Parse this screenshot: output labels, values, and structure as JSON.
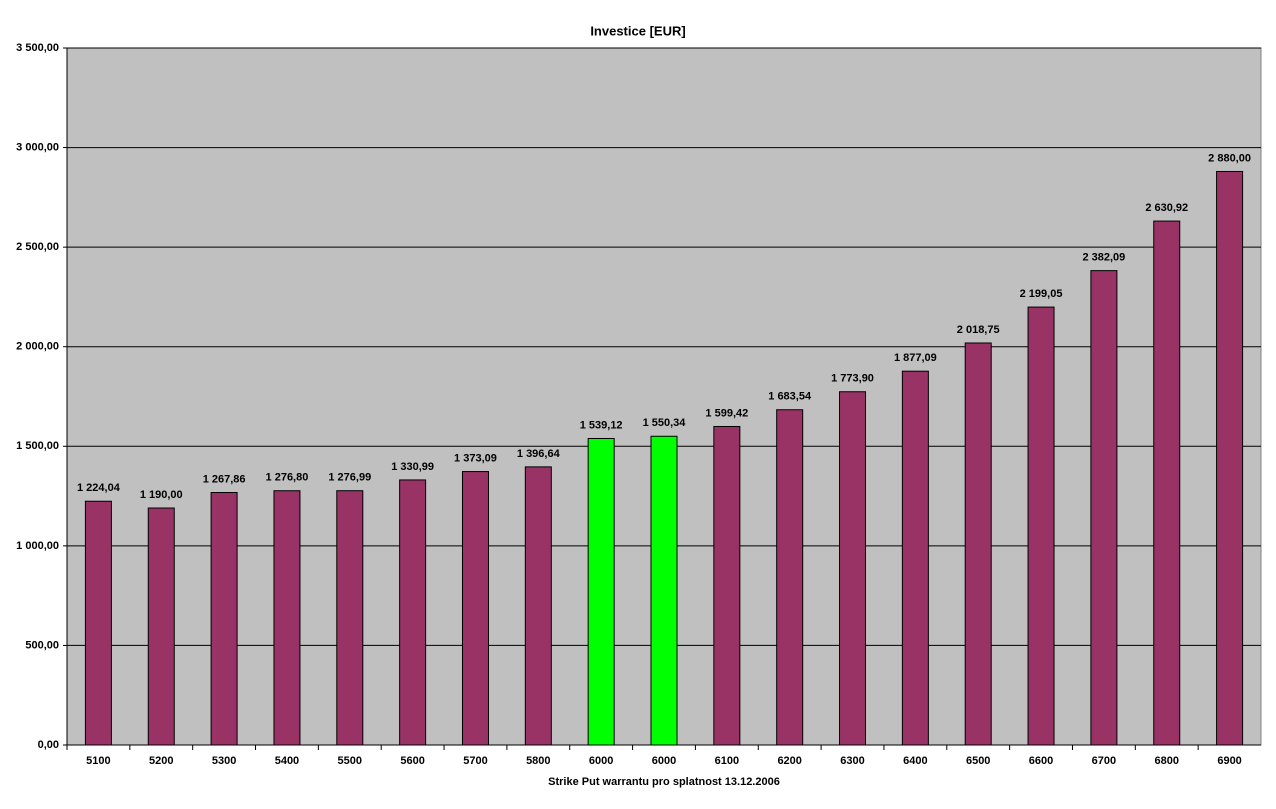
{
  "chart_data": {
    "type": "bar",
    "title": "Investice [EUR]",
    "xlabel": "Strike Put warrantu pro splatnost 13.12.2006",
    "categories": [
      "5100",
      "5200",
      "5300",
      "5400",
      "5500",
      "5600",
      "5700",
      "5800",
      "6000",
      "6000",
      "6100",
      "6200",
      "6300",
      "6400",
      "6500",
      "6600",
      "6700",
      "6800",
      "6900"
    ],
    "values": [
      1224.04,
      1190.0,
      1267.86,
      1276.8,
      1276.99,
      1330.99,
      1373.09,
      1396.64,
      1539.12,
      1550.34,
      1599.42,
      1683.54,
      1773.9,
      1877.09,
      2018.75,
      2199.05,
      2382.09,
      2630.92,
      2880.0
    ],
    "value_labels": [
      "1 224,04",
      "1 190,00",
      "1 267,86",
      "1 276,80",
      "1 276,99",
      "1 330,99",
      "1 373,09",
      "1 396,64",
      "1 539,12",
      "1 550,34",
      "1 599,42",
      "1 683,54",
      "1 773,90",
      "1 877,09",
      "2 018,75",
      "2 199,05",
      "2 382,09",
      "2 630,92",
      "2 880,00"
    ],
    "colors": [
      "#993366",
      "#993366",
      "#993366",
      "#993366",
      "#993366",
      "#993366",
      "#993366",
      "#993366",
      "#00ff00",
      "#00ff00",
      "#993366",
      "#993366",
      "#993366",
      "#993366",
      "#993366",
      "#993366",
      "#993366",
      "#993366",
      "#993366"
    ],
    "ylim": [
      0,
      3500
    ],
    "yticks": [
      {
        "value": 0,
        "label": "0,00"
      },
      {
        "value": 500,
        "label": "500,00"
      },
      {
        "value": 1000,
        "label": "1 000,00"
      },
      {
        "value": 1500,
        "label": "1 500,00"
      },
      {
        "value": 2000,
        "label": "2 000,00"
      },
      {
        "value": 2500,
        "label": "2 500,00"
      },
      {
        "value": 3000,
        "label": "3 000,00"
      },
      {
        "value": 3500,
        "label": "3 500,00"
      }
    ],
    "grid": true
  }
}
